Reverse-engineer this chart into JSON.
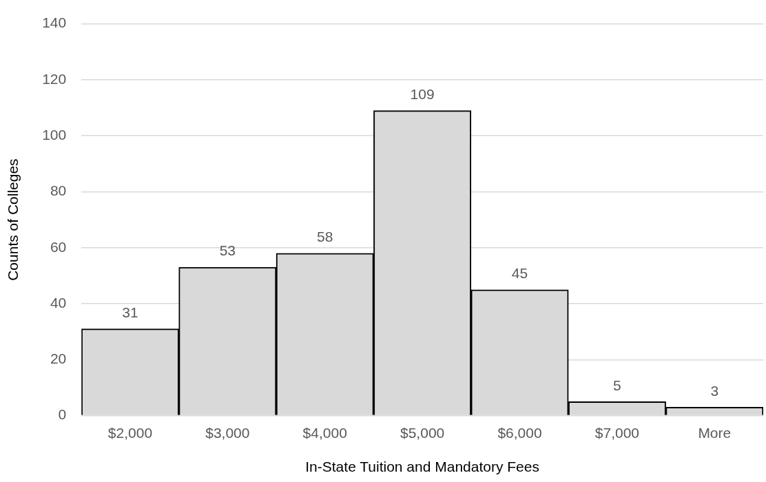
{
  "chart_data": {
    "type": "bar",
    "xlabel": "In-State Tuition and Mandatory Fees",
    "ylabel": "Counts of Colleges",
    "categories": [
      "$2,000",
      "$3,000",
      "$4,000",
      "$5,000",
      "$6,000",
      "$7,000",
      "More"
    ],
    "values": [
      31,
      53,
      58,
      109,
      45,
      5,
      3
    ],
    "color": "#d9d9d9",
    "ylim": [
      0,
      140
    ],
    "yticks": [
      0,
      20,
      40,
      60,
      80,
      100,
      120,
      140
    ],
    "grid": "y",
    "data_labels": true
  }
}
